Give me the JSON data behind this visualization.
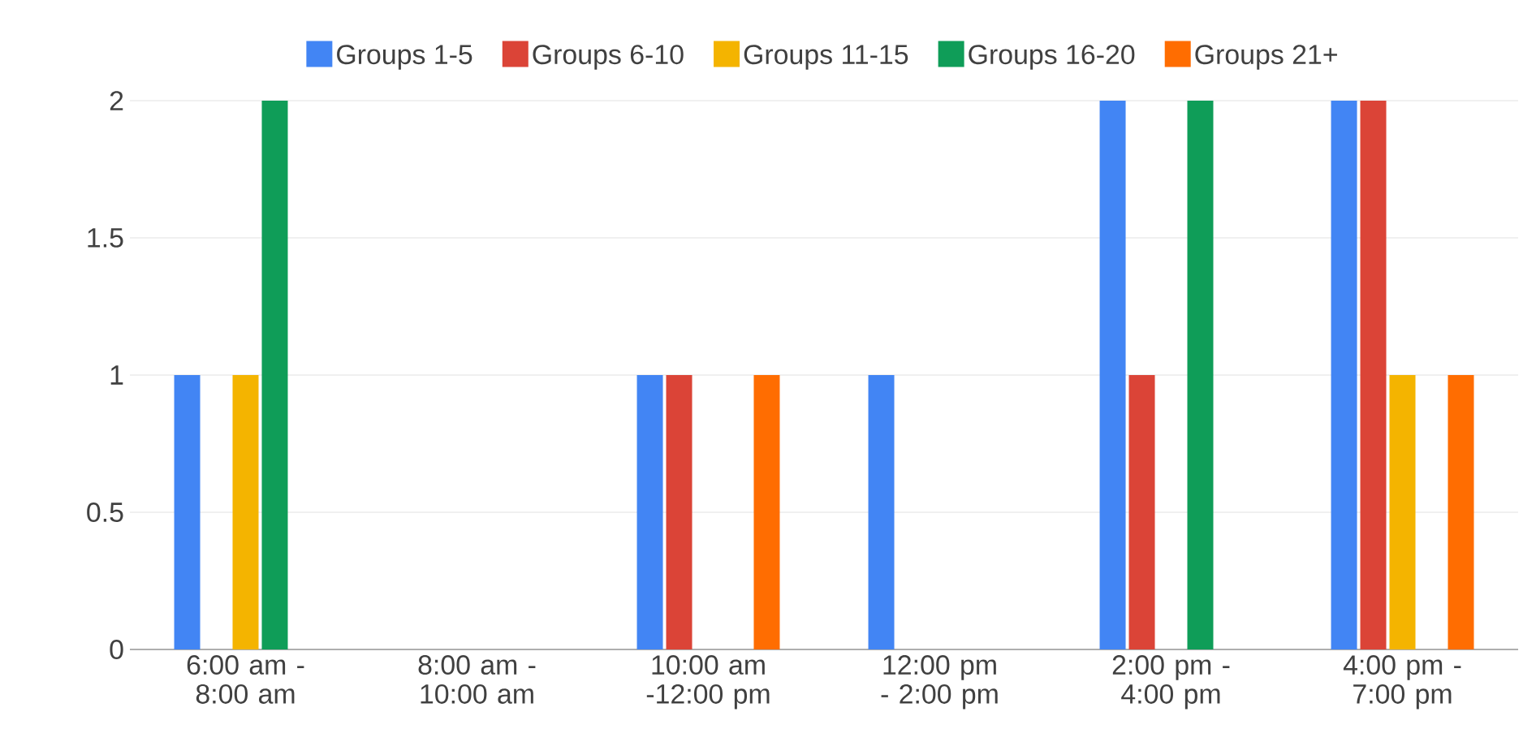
{
  "chart_data": {
    "type": "bar",
    "categories": [
      "6:00 am - 8:00 am",
      "8:00 am - 10:00 am",
      "10:00 am -12:00 pm",
      "12:00 pm - 2:00 pm",
      "2:00 pm - 4:00 pm",
      "4:00 pm - 7:00 pm"
    ],
    "series": [
      {
        "name": "Groups 1-5",
        "color": "#4285f4",
        "values": [
          1,
          0,
          1,
          1,
          2,
          2
        ]
      },
      {
        "name": "Groups 6-10",
        "color": "#db4437",
        "values": [
          0,
          0,
          1,
          0,
          1,
          2
        ]
      },
      {
        "name": "Groups 11-15",
        "color": "#f4b400",
        "values": [
          1,
          0,
          0,
          0,
          0,
          1
        ]
      },
      {
        "name": "Groups 16-20",
        "color": "#0f9d58",
        "values": [
          2,
          0,
          0,
          0,
          2,
          0
        ]
      },
      {
        "name": "Groups 21+",
        "color": "#ff6d01",
        "values": [
          0,
          0,
          1,
          0,
          0,
          1
        ]
      }
    ],
    "ylim": [
      0,
      2
    ],
    "yticks": [
      0,
      0.5,
      1,
      1.5,
      2
    ],
    "grid": "y",
    "legend": "top"
  }
}
